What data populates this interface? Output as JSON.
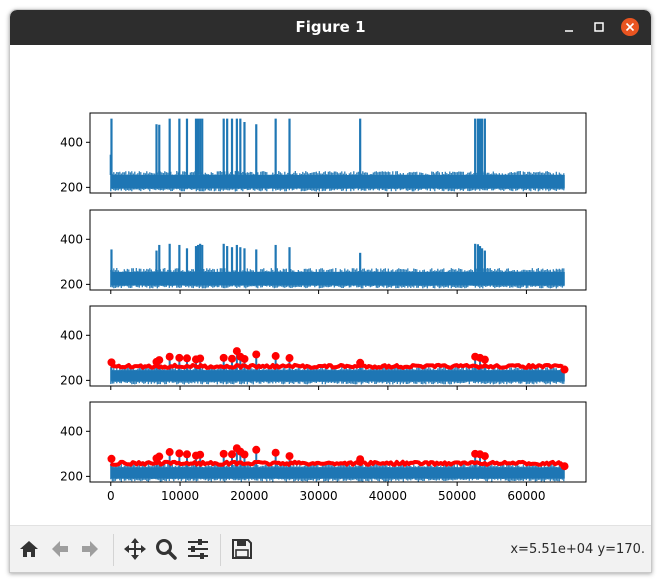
{
  "window": {
    "title": "Figure 1"
  },
  "toolbar": {
    "tools": [
      "home-icon",
      "back-arrow-icon",
      "forward-arrow-icon",
      "pan-icon",
      "zoom-icon",
      "subplots-icon",
      "save-icon"
    ],
    "coordinates": "x=5.51e+04 y=170."
  },
  "colors": {
    "signal": "#1f77b4",
    "peaks": "#ff0000",
    "titlebar": "#2d2d2d",
    "close_button": "#e95420"
  },
  "chart_data": [
    {
      "type": "line",
      "x_range": [
        0,
        65536
      ],
      "xlim": [
        -3000,
        68600
      ],
      "ylim": [
        175,
        530
      ],
      "yticks": [
        "200",
        "400"
      ],
      "xticks": [],
      "baseline_band": [
        195,
        255
      ],
      "spikes": [
        {
          "x": 0,
          "y": 345
        },
        {
          "x": 100,
          "y": 505
        },
        {
          "x": 6600,
          "y": 480
        },
        {
          "x": 7000,
          "y": 478
        },
        {
          "x": 8500,
          "y": 505
        },
        {
          "x": 9900,
          "y": 505
        },
        {
          "x": 11000,
          "y": 505
        },
        {
          "x": 12300,
          "y": 505
        },
        {
          "x": 12600,
          "y": 505
        },
        {
          "x": 12900,
          "y": 505
        },
        {
          "x": 13200,
          "y": 505
        },
        {
          "x": 16300,
          "y": 505
        },
        {
          "x": 16800,
          "y": 505
        },
        {
          "x": 17500,
          "y": 505
        },
        {
          "x": 18200,
          "y": 505
        },
        {
          "x": 18700,
          "y": 505
        },
        {
          "x": 19300,
          "y": 490
        },
        {
          "x": 21000,
          "y": 480
        },
        {
          "x": 23800,
          "y": 505
        },
        {
          "x": 25800,
          "y": 505
        },
        {
          "x": 36000,
          "y": 505
        },
        {
          "x": 52600,
          "y": 505
        },
        {
          "x": 53000,
          "y": 505
        },
        {
          "x": 53300,
          "y": 505
        },
        {
          "x": 53600,
          "y": 505
        },
        {
          "x": 54000,
          "y": 505
        }
      ]
    },
    {
      "type": "line",
      "x_range": [
        0,
        65536
      ],
      "xlim": [
        -3000,
        68600
      ],
      "ylim": [
        175,
        530
      ],
      "yticks": [
        "200",
        "400"
      ],
      "xticks": [],
      "baseline_band": [
        195,
        255
      ],
      "spikes": [
        {
          "x": 100,
          "y": 355
        },
        {
          "x": 6600,
          "y": 350
        },
        {
          "x": 7000,
          "y": 375
        },
        {
          "x": 8500,
          "y": 380
        },
        {
          "x": 9900,
          "y": 375
        },
        {
          "x": 11000,
          "y": 360
        },
        {
          "x": 12300,
          "y": 370
        },
        {
          "x": 12600,
          "y": 375
        },
        {
          "x": 12900,
          "y": 380
        },
        {
          "x": 13200,
          "y": 375
        },
        {
          "x": 16300,
          "y": 380
        },
        {
          "x": 16800,
          "y": 370
        },
        {
          "x": 17500,
          "y": 365
        },
        {
          "x": 18200,
          "y": 375
        },
        {
          "x": 18700,
          "y": 365
        },
        {
          "x": 19300,
          "y": 360
        },
        {
          "x": 21000,
          "y": 355
        },
        {
          "x": 23800,
          "y": 375
        },
        {
          "x": 25800,
          "y": 365
        },
        {
          "x": 36000,
          "y": 340
        },
        {
          "x": 52600,
          "y": 380
        },
        {
          "x": 53000,
          "y": 378
        },
        {
          "x": 53300,
          "y": 370
        },
        {
          "x": 53600,
          "y": 360
        },
        {
          "x": 54000,
          "y": 350
        }
      ]
    },
    {
      "type": "scatter",
      "x_range": [
        0,
        65536
      ],
      "xlim": [
        -3000,
        68600
      ],
      "ylim": [
        175,
        530
      ],
      "yticks": [
        "200",
        "400"
      ],
      "xticks": [],
      "baseline_band": [
        195,
        245
      ],
      "peak_envelope": 262,
      "peaks": [
        {
          "x": 100,
          "y": 280
        },
        {
          "x": 6600,
          "y": 282
        },
        {
          "x": 7000,
          "y": 290
        },
        {
          "x": 8500,
          "y": 305
        },
        {
          "x": 9900,
          "y": 300
        },
        {
          "x": 11000,
          "y": 298
        },
        {
          "x": 12300,
          "y": 293
        },
        {
          "x": 12900,
          "y": 297
        },
        {
          "x": 16300,
          "y": 300
        },
        {
          "x": 17500,
          "y": 296
        },
        {
          "x": 18200,
          "y": 330
        },
        {
          "x": 18700,
          "y": 305
        },
        {
          "x": 19300,
          "y": 295
        },
        {
          "x": 21000,
          "y": 315
        },
        {
          "x": 23800,
          "y": 308
        },
        {
          "x": 25800,
          "y": 299
        },
        {
          "x": 36000,
          "y": 278
        },
        {
          "x": 52600,
          "y": 305
        },
        {
          "x": 53300,
          "y": 300
        },
        {
          "x": 54000,
          "y": 292
        },
        {
          "x": 65500,
          "y": 248
        }
      ]
    },
    {
      "type": "scatter",
      "x_range": [
        0,
        65536
      ],
      "xlim": [
        -3000,
        68600
      ],
      "ylim": [
        175,
        530
      ],
      "yticks": [
        "200",
        "400"
      ],
      "xticks": [
        "0",
        "10000",
        "20000",
        "30000",
        "40000",
        "50000",
        "60000"
      ],
      "xtick_values": [
        0,
        10000,
        20000,
        30000,
        40000,
        50000,
        60000
      ],
      "baseline_band": [
        190,
        240
      ],
      "peak_envelope": 258,
      "peaks": [
        {
          "x": 100,
          "y": 278
        },
        {
          "x": 6600,
          "y": 280
        },
        {
          "x": 7000,
          "y": 288
        },
        {
          "x": 8500,
          "y": 308
        },
        {
          "x": 9900,
          "y": 302
        },
        {
          "x": 11000,
          "y": 298
        },
        {
          "x": 12300,
          "y": 292
        },
        {
          "x": 12900,
          "y": 296
        },
        {
          "x": 16300,
          "y": 300
        },
        {
          "x": 17500,
          "y": 298
        },
        {
          "x": 18200,
          "y": 325
        },
        {
          "x": 18700,
          "y": 310
        },
        {
          "x": 19300,
          "y": 297
        },
        {
          "x": 21000,
          "y": 318
        },
        {
          "x": 23800,
          "y": 305
        },
        {
          "x": 25800,
          "y": 290
        },
        {
          "x": 36000,
          "y": 276
        },
        {
          "x": 52600,
          "y": 300
        },
        {
          "x": 53300,
          "y": 298
        },
        {
          "x": 54000,
          "y": 290
        },
        {
          "x": 65500,
          "y": 245
        }
      ]
    }
  ]
}
